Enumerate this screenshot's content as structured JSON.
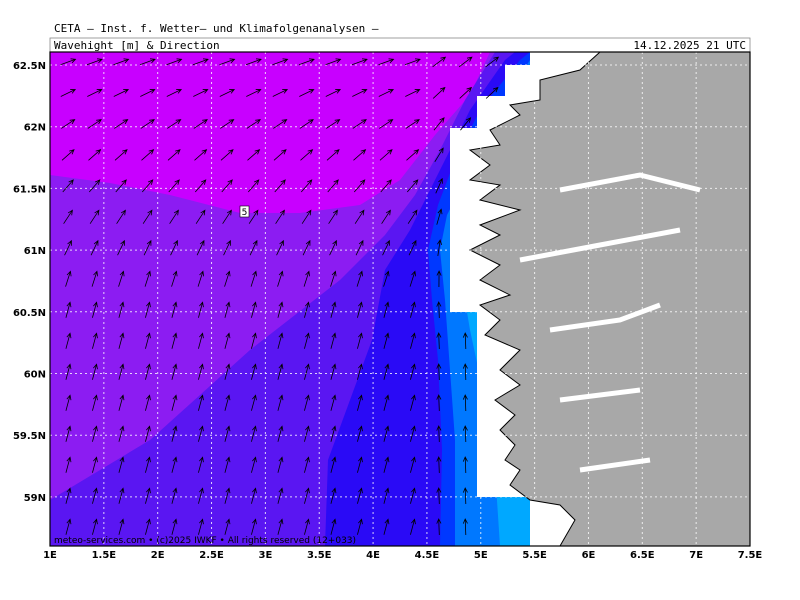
{
  "header": {
    "title": "CETA — Inst. f. Wetter— und Klimafolgenanalysen —",
    "subtitle": "Wavehight [m] & Direction",
    "date": "14.12.2025 21 UTC"
  },
  "axes": {
    "lat_labels": [
      "62.5N",
      "62N",
      "61.5N",
      "61N",
      "60.5N",
      "60N",
      "59.5N",
      "59N"
    ],
    "lon_labels": [
      "1E",
      "1.5E",
      "2E",
      "2.5E",
      "3E",
      "3.5E",
      "4E",
      "4.5E",
      "5E",
      "5.5E",
      "6E",
      "6.5E",
      "7E",
      "7.5E"
    ]
  },
  "map": {
    "contour_label": "5",
    "footer": "meteo-services.com • (c)2025 IWKF • All rights reserved (12+033)"
  }
}
